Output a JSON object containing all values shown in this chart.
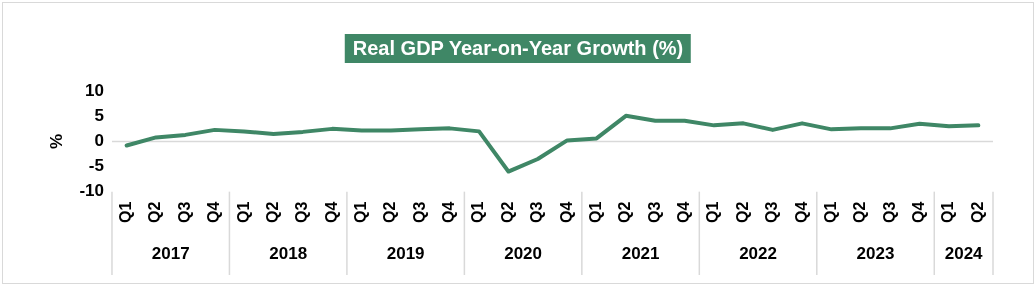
{
  "chart_data": {
    "type": "line",
    "title": "Real GDP Year-on-Year Growth (%)",
    "ylabel": "%",
    "categories": [
      "Q1",
      "Q2",
      "Q3",
      "Q4",
      "Q1",
      "Q2",
      "Q3",
      "Q4",
      "Q1",
      "Q2",
      "Q3",
      "Q4",
      "Q1",
      "Q2",
      "Q3",
      "Q4",
      "Q1",
      "Q2",
      "Q3",
      "Q4",
      "Q1",
      "Q2",
      "Q3",
      "Q4",
      "Q1",
      "Q2",
      "Q3",
      "Q4",
      "Q1",
      "Q2"
    ],
    "series": [
      {
        "color": "#3f8766",
        "values": [
          -0.8,
          0.8,
          1.3,
          2.3,
          2.0,
          1.5,
          1.9,
          2.5,
          2.2,
          2.2,
          2.4,
          2.6,
          2.0,
          -6.0,
          -3.5,
          0.2,
          0.6,
          5.1,
          4.1,
          4.1,
          3.2,
          3.6,
          2.3,
          3.6,
          2.4,
          2.6,
          2.6,
          3.5,
          3.0,
          3.2
        ]
      }
    ],
    "ylim": [
      -10,
      10
    ],
    "yticks": [
      -10,
      -5,
      0,
      5,
      10
    ],
    "grid": false,
    "legend": false,
    "marker": "none",
    "line_style": "solid",
    "ref_lines": [
      {
        "axis": "y",
        "value": 0,
        "color": "#d9d9d9"
      }
    ],
    "annotations": [
      "2017",
      "2018",
      "2019",
      "2020",
      "2021",
      "2022",
      "2023",
      "2024"
    ]
  }
}
